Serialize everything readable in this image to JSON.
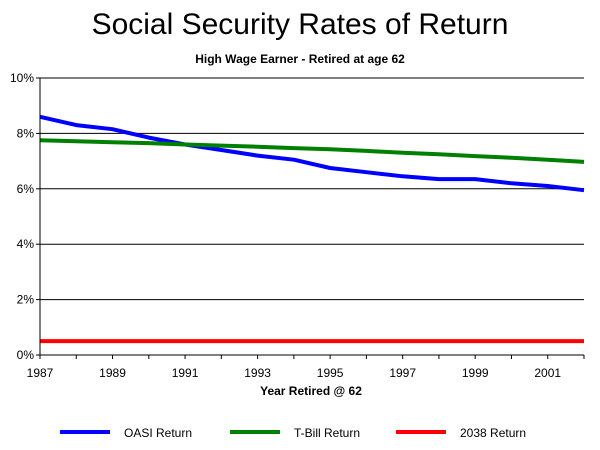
{
  "chart_data": {
    "type": "line",
    "title": "Social Security Rates of Return",
    "subtitle": "High Wage Earner - Retired at age 62",
    "xlabel": "Year Retired @ 62",
    "ylabel": "",
    "xlim": [
      1987,
      2002
    ],
    "ylim": [
      0,
      10
    ],
    "x_ticks": [
      "1987",
      "1989",
      "1991",
      "1993",
      "1995",
      "1997",
      "1999",
      "2001"
    ],
    "x_tick_values": [
      1987,
      1989,
      1991,
      1993,
      1995,
      1997,
      1999,
      2001
    ],
    "y_ticks": [
      "0%",
      "2%",
      "4%",
      "6%",
      "8%",
      "10%"
    ],
    "y_tick_values": [
      0,
      2,
      4,
      6,
      8,
      10
    ],
    "grid": "horizontal",
    "legend_position": "bottom",
    "x": [
      1987,
      1988,
      1989,
      1990,
      1991,
      1992,
      1993,
      1994,
      1995,
      1996,
      1997,
      1998,
      1999,
      2000,
      2001,
      2002
    ],
    "series": [
      {
        "name": "OASI Return",
        "color": "#0000ff",
        "values": [
          8.6,
          8.3,
          8.15,
          7.85,
          7.6,
          7.4,
          7.2,
          7.05,
          6.75,
          6.6,
          6.45,
          6.35,
          6.35,
          6.2,
          6.1,
          5.95
        ]
      },
      {
        "name": "T-Bill Return",
        "color": "#008000",
        "values": [
          7.75,
          7.72,
          7.68,
          7.65,
          7.6,
          7.56,
          7.52,
          7.47,
          7.43,
          7.37,
          7.3,
          7.25,
          7.18,
          7.12,
          7.05,
          6.97
        ]
      },
      {
        "name": "2038 Return",
        "color": "#ff0000",
        "values": [
          0.5,
          0.5,
          0.5,
          0.5,
          0.5,
          0.5,
          0.5,
          0.5,
          0.5,
          0.5,
          0.5,
          0.5,
          0.5,
          0.5,
          0.5,
          0.5
        ]
      }
    ]
  }
}
